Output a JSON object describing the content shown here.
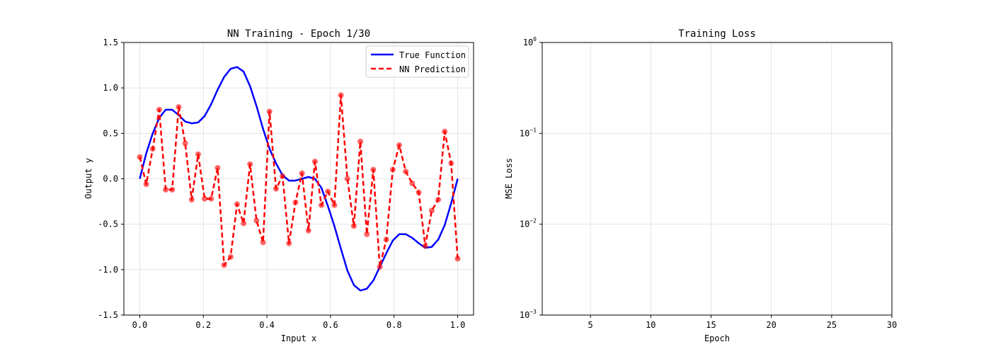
{
  "chart_data": [
    {
      "type": "line",
      "title": "NN Training - Epoch 1/30",
      "xlabel": "Input x",
      "ylabel": "Output y",
      "xlim": [
        -0.05,
        1.05
      ],
      "ylim": [
        -1.5,
        1.5
      ],
      "xticks": [
        0.0,
        0.2,
        0.4,
        0.6,
        0.8,
        1.0
      ],
      "xtick_labels": [
        "0.0",
        "0.2",
        "0.4",
        "0.6",
        "0.8",
        "1.0"
      ],
      "yticks": [
        -1.5,
        -1.0,
        -0.5,
        0.0,
        0.5,
        1.0,
        1.5
      ],
      "ytick_labels": [
        "-1.5",
        "-1.0",
        "-0.5",
        "0.0",
        "0.5",
        "1.0",
        "1.5"
      ],
      "grid": true,
      "legend_position": "top-right",
      "series": [
        {
          "name": "True Function",
          "color": "#0000ff",
          "style": "solid",
          "x": [
            0.0,
            0.0204,
            0.0408,
            0.0612,
            0.0816,
            0.102,
            0.1224,
            0.1429,
            0.1633,
            0.1837,
            0.2041,
            0.2245,
            0.2449,
            0.2653,
            0.2857,
            0.3061,
            0.3265,
            0.3469,
            0.3673,
            0.3878,
            0.4082,
            0.4286,
            0.449,
            0.4694,
            0.4898,
            0.5102,
            0.5306,
            0.551,
            0.5714,
            0.5918,
            0.6122,
            0.6327,
            0.6531,
            0.6735,
            0.6939,
            0.7143,
            0.7347,
            0.7551,
            0.7755,
            0.7959,
            0.8163,
            0.8367,
            0.8571,
            0.8776,
            0.898,
            0.9184,
            0.9388,
            0.9592,
            0.9796,
            1.0
          ],
          "y": [
            0.0,
            0.28,
            0.5,
            0.67,
            0.76,
            0.76,
            0.7,
            0.63,
            0.61,
            0.62,
            0.69,
            0.82,
            0.98,
            1.12,
            1.21,
            1.23,
            1.18,
            1.02,
            0.8,
            0.55,
            0.33,
            0.17,
            0.04,
            -0.02,
            -0.02,
            0.0,
            0.02,
            0.0,
            -0.1,
            -0.3,
            -0.52,
            -0.77,
            -1.01,
            -1.17,
            -1.23,
            -1.21,
            -1.12,
            -0.97,
            -0.82,
            -0.68,
            -0.61,
            -0.61,
            -0.65,
            -0.71,
            -0.76,
            -0.75,
            -0.67,
            -0.51,
            -0.27,
            0.0
          ]
        },
        {
          "name": "NN Prediction",
          "color": "#ff0000",
          "style": "dashed",
          "markers": true,
          "x": [
            0.0,
            0.0204,
            0.0408,
            0.0612,
            0.0816,
            0.102,
            0.1224,
            0.1429,
            0.1633,
            0.1837,
            0.2041,
            0.2245,
            0.2449,
            0.2653,
            0.2857,
            0.3061,
            0.3265,
            0.3469,
            0.3673,
            0.3878,
            0.4082,
            0.4286,
            0.449,
            0.4694,
            0.4898,
            0.5102,
            0.5306,
            0.551,
            0.5714,
            0.5918,
            0.6122,
            0.6327,
            0.6531,
            0.6735,
            0.6939,
            0.7143,
            0.7347,
            0.7551,
            0.7755,
            0.7959,
            0.8163,
            0.8367,
            0.8571,
            0.8776,
            0.898,
            0.9184,
            0.9388,
            0.9592,
            0.9796,
            1.0
          ],
          "y": [
            0.24,
            -0.06,
            0.33,
            0.76,
            -0.12,
            -0.12,
            0.79,
            0.39,
            -0.23,
            0.27,
            -0.22,
            -0.22,
            0.12,
            -0.95,
            -0.86,
            -0.28,
            -0.49,
            0.16,
            -0.46,
            -0.7,
            0.74,
            -0.11,
            0.03,
            -0.71,
            -0.26,
            0.06,
            -0.57,
            0.19,
            -0.29,
            -0.14,
            -0.29,
            0.92,
            0.0,
            -0.52,
            0.41,
            -0.61,
            0.1,
            -0.97,
            -0.67,
            0.1,
            0.37,
            0.08,
            -0.05,
            -0.15,
            -0.74,
            -0.35,
            -0.23,
            0.52,
            0.17,
            -0.88
          ]
        }
      ]
    },
    {
      "type": "line",
      "title": "Training Loss",
      "xlabel": "Epoch",
      "ylabel": "MSE Loss",
      "xlim": [
        1,
        30
      ],
      "ylim": [
        0.001,
        1
      ],
      "yscale": "log",
      "xticks": [
        5,
        10,
        15,
        20,
        25,
        30
      ],
      "xtick_labels": [
        "5",
        "10",
        "15",
        "20",
        "25",
        "30"
      ],
      "yticks": [
        1,
        0.1,
        0.01,
        0.001
      ],
      "ytick_labels": [
        {
          "base": "10",
          "exp": "0"
        },
        {
          "base": "10",
          "exp": "−1"
        },
        {
          "base": "10",
          "exp": "−2"
        },
        {
          "base": "10",
          "exp": "−3"
        }
      ],
      "grid": true,
      "series": []
    }
  ]
}
